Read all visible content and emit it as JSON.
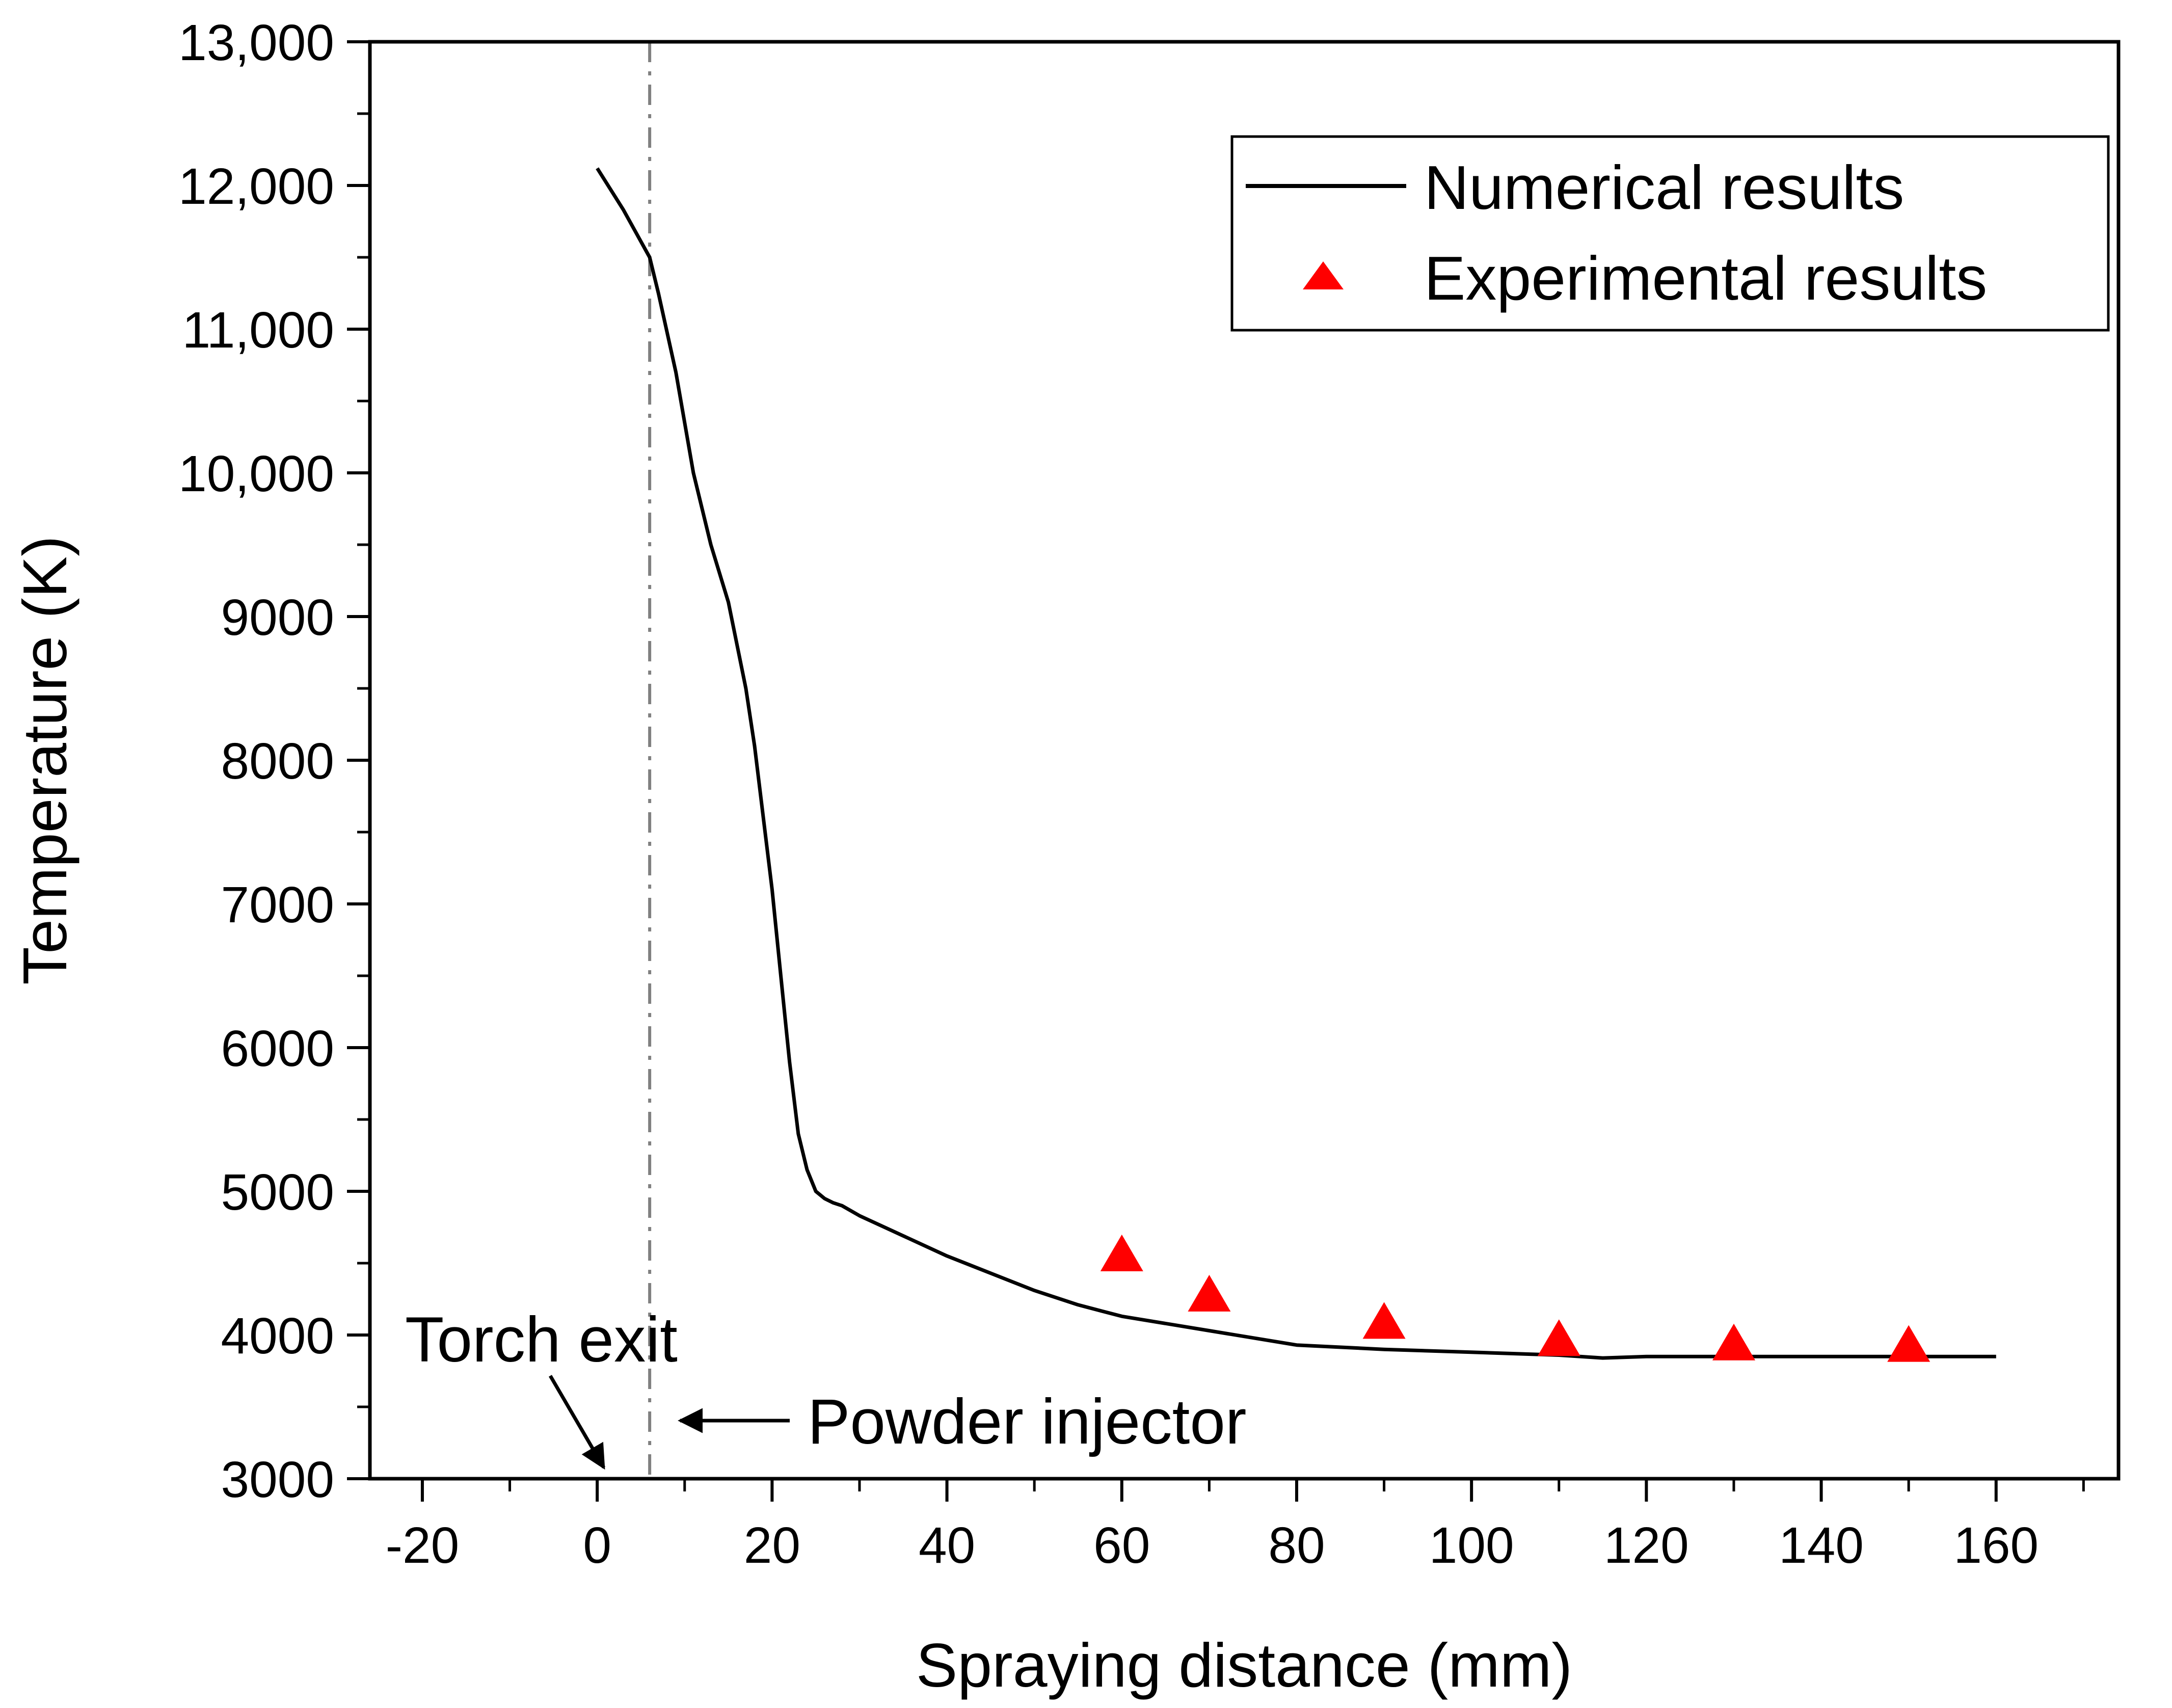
{
  "chart_data": {
    "type": "line",
    "title": "",
    "xlabel": "Spraying distance (mm)",
    "ylabel": "Temperature (K)",
    "xlim": [
      -26,
      174
    ],
    "ylim": [
      3000,
      13000
    ],
    "x_ticks": [
      -20,
      0,
      20,
      40,
      60,
      80,
      100,
      120,
      140,
      160
    ],
    "x_tick_labels": [
      "-20",
      "0",
      "20",
      "40",
      "60",
      "80",
      "100",
      "120",
      "140",
      "160"
    ],
    "y_ticks": [
      3000,
      4000,
      5000,
      6000,
      7000,
      8000,
      9000,
      10000,
      11000,
      12000,
      13000
    ],
    "y_tick_labels": [
      "3000",
      "4000",
      "5000",
      "6000",
      "7000",
      "8000",
      "9000",
      "10,000",
      "11,000",
      "12,000",
      "13,000"
    ],
    "grid": false,
    "legend_position": "top-right",
    "series": [
      {
        "name": "Numerical results",
        "style": "line",
        "color": "#000000",
        "x": [
          0,
          3,
          6,
          7,
          9,
          11,
          13,
          15,
          17,
          18,
          19,
          20,
          21,
          22,
          23,
          24,
          25,
          26,
          27,
          28,
          30,
          35,
          40,
          45,
          50,
          55,
          60,
          70,
          80,
          90,
          100,
          110,
          115,
          120,
          130,
          140,
          150,
          160
        ],
        "y": [
          12120,
          11830,
          11500,
          11250,
          10700,
          10000,
          9500,
          9100,
          8500,
          8100,
          7600,
          7100,
          6500,
          5900,
          5400,
          5150,
          5000,
          4950,
          4920,
          4900,
          4830,
          4690,
          4550,
          4430,
          4310,
          4210,
          4130,
          4030,
          3930,
          3900,
          3880,
          3860,
          3840,
          3850,
          3850,
          3850,
          3850,
          3850
        ]
      },
      {
        "name": "Experimental results",
        "style": "marker-triangle",
        "color": "#ff0000",
        "x": [
          60,
          70,
          90,
          110,
          130,
          150
        ],
        "y": [
          4550,
          4270,
          4080,
          3960,
          3930,
          3920
        ]
      }
    ],
    "reference_line": {
      "x": 6,
      "style": "dash-dot",
      "color": "#808080"
    },
    "annotations": [
      {
        "text": "Torch exit",
        "points_to_x": 0,
        "points_to_y": 3000
      },
      {
        "text": "Powder injector",
        "points_to_x": 6,
        "points_to_y": 3400
      }
    ]
  }
}
